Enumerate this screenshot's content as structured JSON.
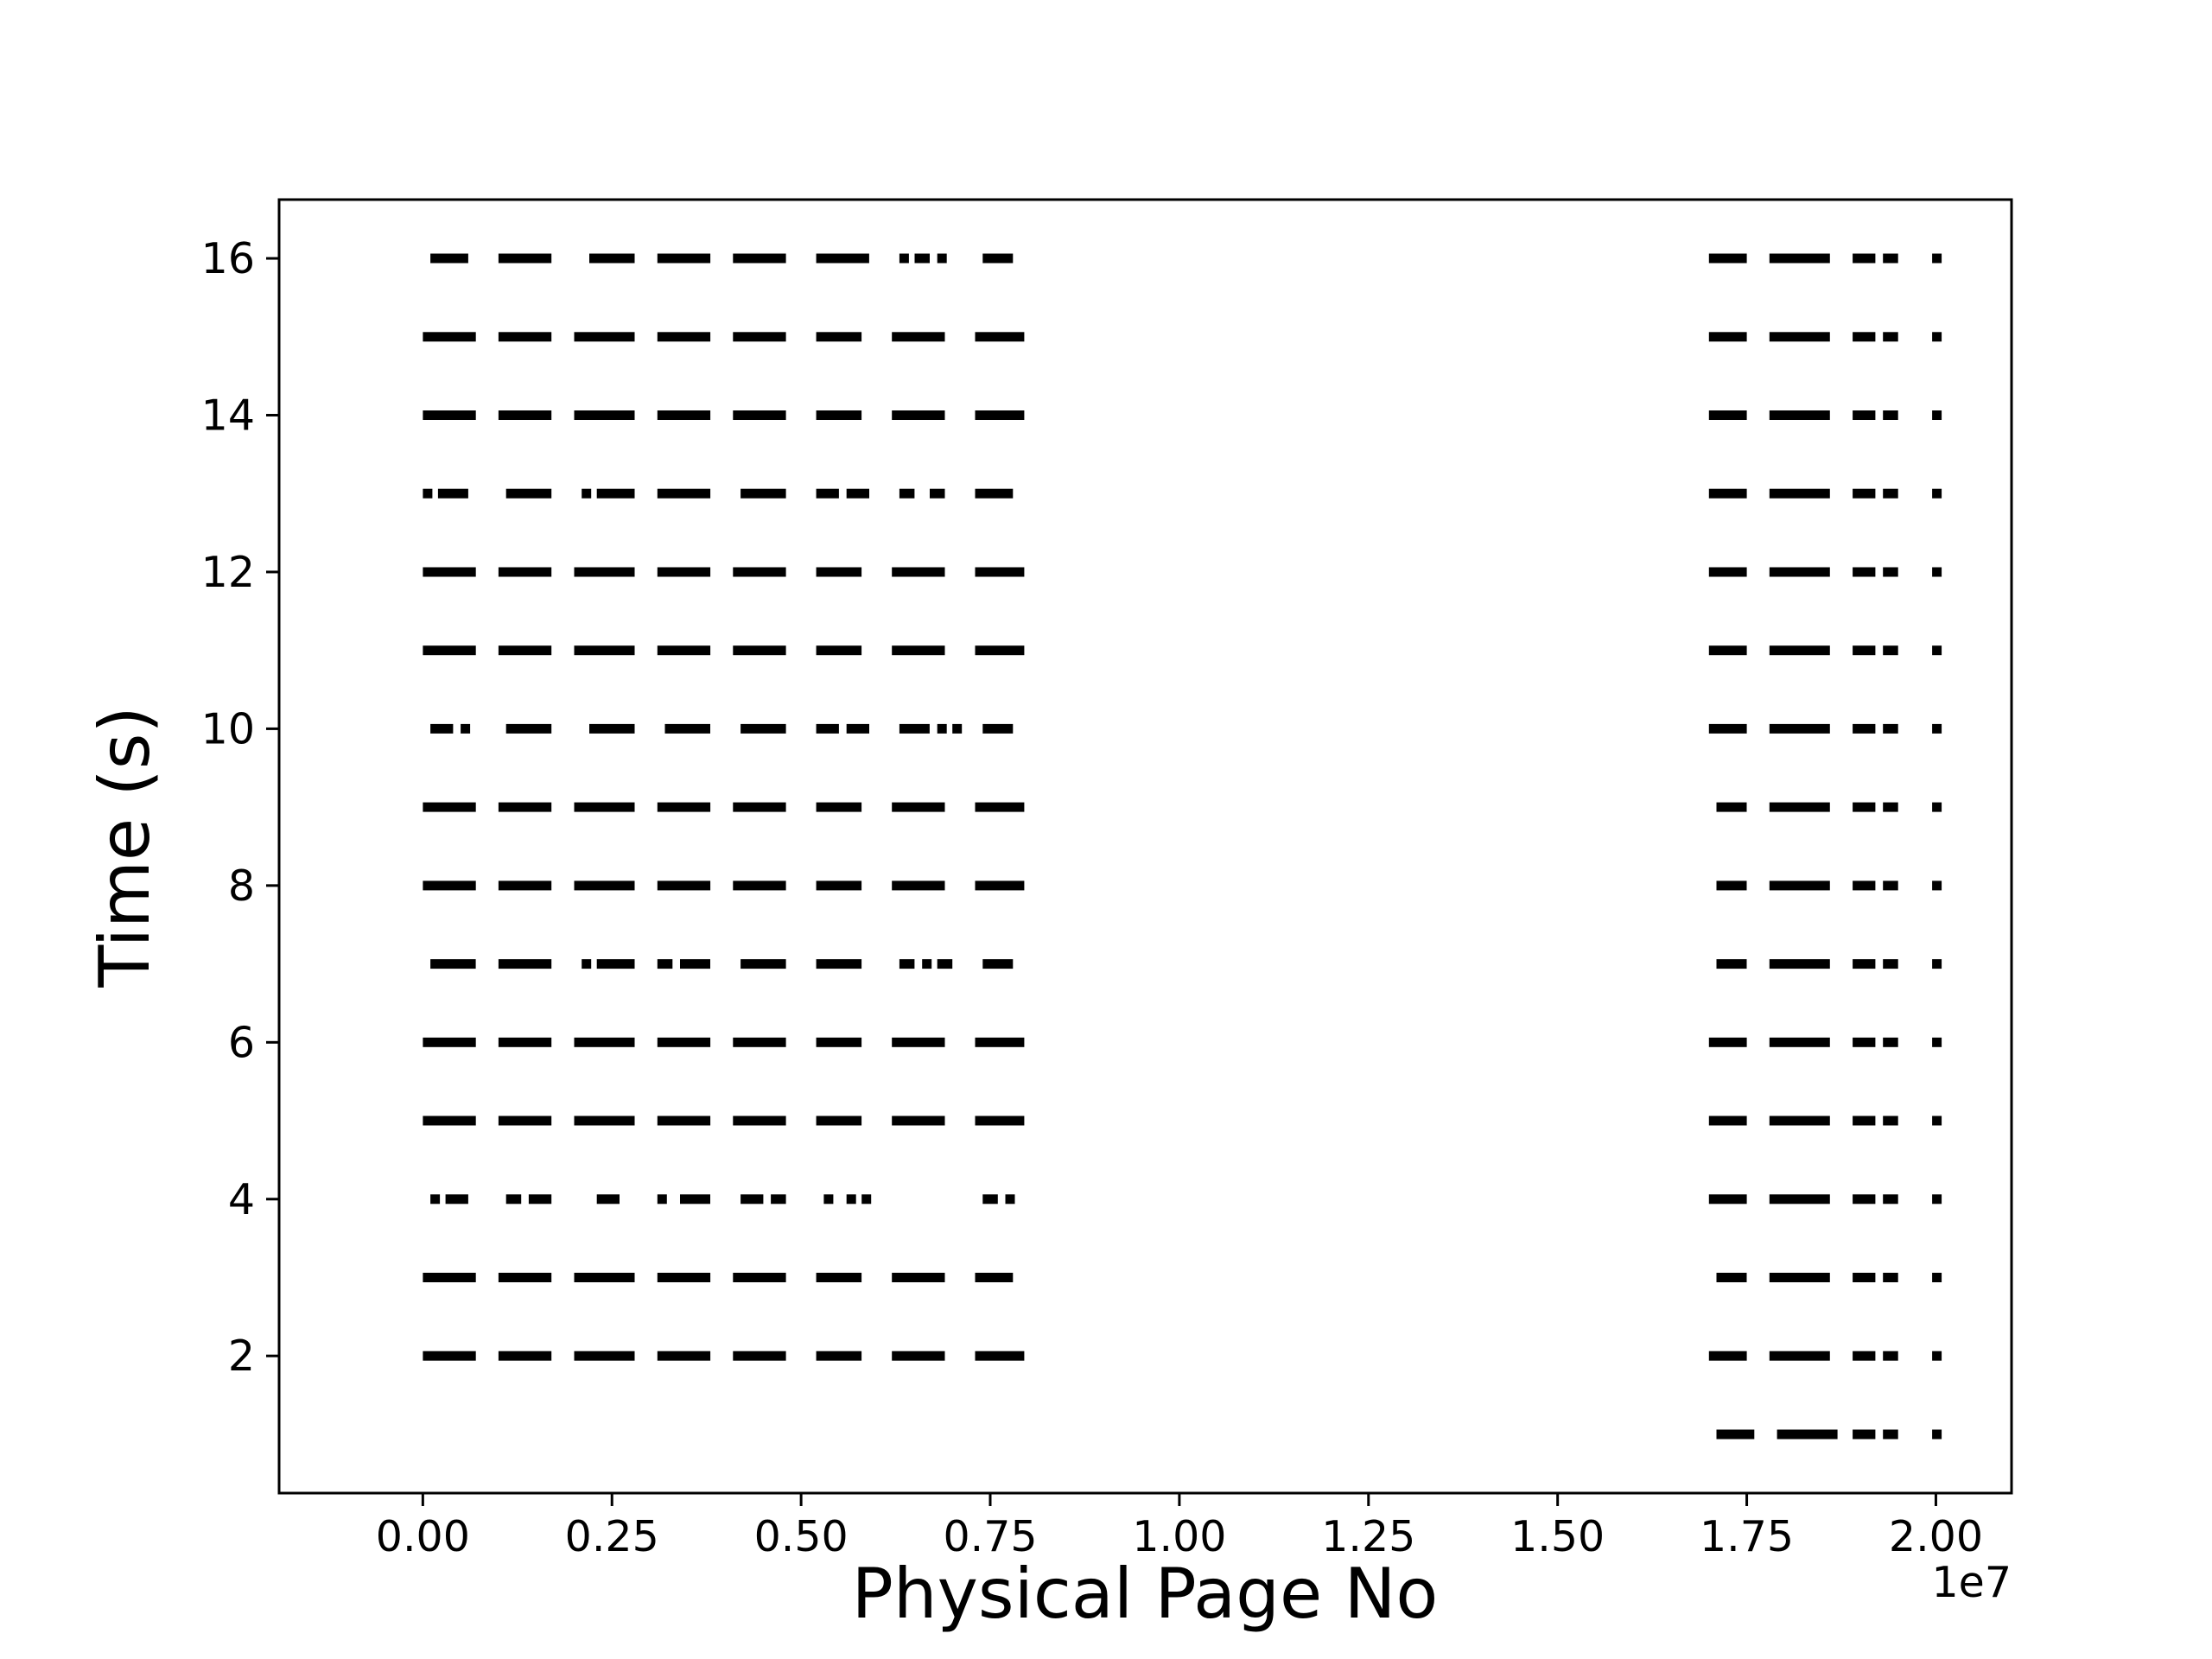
{
  "chart_data": {
    "type": "scatter",
    "title": "",
    "xlabel": "Physical Page No",
    "ylabel": "Time (s)",
    "x_offset_label": "1e7",
    "xlim": [
      -0.19,
      2.1
    ],
    "ylim": [
      0.25,
      16.75
    ],
    "x_units_note": "",
    "x_ticks": [
      0.0,
      0.25,
      0.5,
      0.75,
      1.0,
      1.25,
      1.5,
      1.75,
      2.0
    ],
    "x_tick_labels": [
      "0.00",
      "0.25",
      "0.50",
      "0.75",
      "1.00",
      "1.25",
      "1.50",
      "1.75",
      "2.00"
    ],
    "y_ticks": [
      2,
      4,
      6,
      8,
      10,
      12,
      14,
      16
    ],
    "y_tick_labels": [
      "2",
      "4",
      "6",
      "8",
      "10",
      "12",
      "14",
      "16"
    ],
    "grid": false,
    "marker_color": "#000000",
    "series": [
      {
        "rows": [
          {
            "y": 1,
            "ranges": [
              [
                1.71,
                1.76
              ],
              [
                1.79,
                1.87
              ],
              [
                1.89,
                1.92
              ],
              [
                1.93,
                1.95
              ],
              [
                1.995,
                2.005
              ]
            ]
          },
          {
            "y": 2,
            "ranges": [
              [
                0.0,
                0.07
              ],
              [
                0.1,
                0.17
              ],
              [
                0.2,
                0.28
              ],
              [
                0.31,
                0.38
              ],
              [
                0.41,
                0.48
              ],
              [
                0.52,
                0.58
              ],
              [
                0.62,
                0.69
              ],
              [
                0.73,
                0.795
              ],
              [
                1.7,
                1.75
              ],
              [
                1.78,
                1.86
              ],
              [
                1.89,
                1.92
              ],
              [
                1.93,
                1.95
              ],
              [
                1.995,
                2.005
              ]
            ]
          },
          {
            "y": 3,
            "ranges": [
              [
                0.0,
                0.07
              ],
              [
                0.1,
                0.17
              ],
              [
                0.2,
                0.28
              ],
              [
                0.31,
                0.38
              ],
              [
                0.41,
                0.48
              ],
              [
                0.52,
                0.58
              ],
              [
                0.62,
                0.69
              ],
              [
                0.73,
                0.78
              ],
              [
                1.71,
                1.75
              ],
              [
                1.78,
                1.86
              ],
              [
                1.89,
                1.92
              ],
              [
                1.93,
                1.95
              ],
              [
                1.995,
                2.005
              ]
            ]
          },
          {
            "y": 4,
            "ranges": [
              [
                0.01,
                0.02
              ],
              [
                0.03,
                0.06
              ],
              [
                0.11,
                0.13
              ],
              [
                0.14,
                0.17
              ],
              [
                0.23,
                0.26
              ],
              [
                0.31,
                0.32
              ],
              [
                0.34,
                0.38
              ],
              [
                0.42,
                0.45
              ],
              [
                0.46,
                0.48
              ],
              [
                0.53,
                0.54
              ],
              [
                0.56,
                0.57
              ],
              [
                0.58,
                0.59
              ],
              [
                0.74,
                0.76
              ],
              [
                0.77,
                0.78
              ],
              [
                1.7,
                1.75
              ],
              [
                1.78,
                1.86
              ],
              [
                1.89,
                1.92
              ],
              [
                1.93,
                1.95
              ],
              [
                1.995,
                2.005
              ]
            ]
          },
          {
            "y": 5,
            "ranges": [
              [
                0.0,
                0.07
              ],
              [
                0.1,
                0.17
              ],
              [
                0.2,
                0.28
              ],
              [
                0.31,
                0.38
              ],
              [
                0.41,
                0.48
              ],
              [
                0.52,
                0.58
              ],
              [
                0.62,
                0.69
              ],
              [
                0.73,
                0.795
              ],
              [
                1.7,
                1.75
              ],
              [
                1.78,
                1.86
              ],
              [
                1.89,
                1.92
              ],
              [
                1.93,
                1.95
              ],
              [
                1.995,
                2.005
              ]
            ]
          },
          {
            "y": 6,
            "ranges": [
              [
                0.0,
                0.07
              ],
              [
                0.1,
                0.17
              ],
              [
                0.2,
                0.28
              ],
              [
                0.31,
                0.38
              ],
              [
                0.41,
                0.48
              ],
              [
                0.52,
                0.58
              ],
              [
                0.62,
                0.69
              ],
              [
                0.73,
                0.795
              ],
              [
                1.7,
                1.75
              ],
              [
                1.78,
                1.86
              ],
              [
                1.89,
                1.92
              ],
              [
                1.93,
                1.95
              ],
              [
                1.995,
                2.005
              ]
            ]
          },
          {
            "y": 7,
            "ranges": [
              [
                0.01,
                0.07
              ],
              [
                0.1,
                0.17
              ],
              [
                0.21,
                0.22
              ],
              [
                0.23,
                0.28
              ],
              [
                0.31,
                0.33
              ],
              [
                0.34,
                0.38
              ],
              [
                0.42,
                0.48
              ],
              [
                0.52,
                0.58
              ],
              [
                0.63,
                0.65
              ],
              [
                0.66,
                0.67
              ],
              [
                0.68,
                0.7
              ],
              [
                0.74,
                0.78
              ],
              [
                1.71,
                1.75
              ],
              [
                1.78,
                1.86
              ],
              [
                1.89,
                1.92
              ],
              [
                1.93,
                1.95
              ],
              [
                1.995,
                2.005
              ]
            ]
          },
          {
            "y": 8,
            "ranges": [
              [
                0.0,
                0.07
              ],
              [
                0.1,
                0.17
              ],
              [
                0.2,
                0.28
              ],
              [
                0.31,
                0.38
              ],
              [
                0.41,
                0.48
              ],
              [
                0.52,
                0.58
              ],
              [
                0.62,
                0.69
              ],
              [
                0.73,
                0.795
              ],
              [
                1.71,
                1.75
              ],
              [
                1.78,
                1.86
              ],
              [
                1.89,
                1.92
              ],
              [
                1.93,
                1.95
              ],
              [
                1.995,
                2.005
              ]
            ]
          },
          {
            "y": 9,
            "ranges": [
              [
                0.0,
                0.07
              ],
              [
                0.1,
                0.17
              ],
              [
                0.2,
                0.28
              ],
              [
                0.31,
                0.38
              ],
              [
                0.41,
                0.48
              ],
              [
                0.52,
                0.58
              ],
              [
                0.62,
                0.69
              ],
              [
                0.73,
                0.795
              ],
              [
                1.71,
                1.75
              ],
              [
                1.78,
                1.86
              ],
              [
                1.89,
                1.92
              ],
              [
                1.93,
                1.95
              ],
              [
                1.995,
                2.005
              ]
            ]
          },
          {
            "y": 10,
            "ranges": [
              [
                0.01,
                0.04
              ],
              [
                0.05,
                0.06
              ],
              [
                0.11,
                0.17
              ],
              [
                0.22,
                0.28
              ],
              [
                0.32,
                0.38
              ],
              [
                0.42,
                0.48
              ],
              [
                0.52,
                0.55
              ],
              [
                0.56,
                0.59
              ],
              [
                0.63,
                0.67
              ],
              [
                0.68,
                0.69
              ],
              [
                0.7,
                0.71
              ],
              [
                0.74,
                0.78
              ],
              [
                1.7,
                1.75
              ],
              [
                1.78,
                1.86
              ],
              [
                1.89,
                1.92
              ],
              [
                1.93,
                1.95
              ],
              [
                1.995,
                2.005
              ]
            ]
          },
          {
            "y": 11,
            "ranges": [
              [
                0.0,
                0.07
              ],
              [
                0.1,
                0.17
              ],
              [
                0.2,
                0.28
              ],
              [
                0.31,
                0.38
              ],
              [
                0.41,
                0.48
              ],
              [
                0.52,
                0.58
              ],
              [
                0.62,
                0.69
              ],
              [
                0.73,
                0.795
              ],
              [
                1.7,
                1.75
              ],
              [
                1.78,
                1.86
              ],
              [
                1.89,
                1.92
              ],
              [
                1.93,
                1.95
              ],
              [
                1.995,
                2.005
              ]
            ]
          },
          {
            "y": 12,
            "ranges": [
              [
                0.0,
                0.07
              ],
              [
                0.1,
                0.17
              ],
              [
                0.2,
                0.28
              ],
              [
                0.31,
                0.38
              ],
              [
                0.41,
                0.48
              ],
              [
                0.52,
                0.58
              ],
              [
                0.62,
                0.69
              ],
              [
                0.73,
                0.795
              ],
              [
                1.7,
                1.75
              ],
              [
                1.78,
                1.86
              ],
              [
                1.89,
                1.92
              ],
              [
                1.93,
                1.95
              ],
              [
                1.995,
                2.005
              ]
            ]
          },
          {
            "y": 13,
            "ranges": [
              [
                0.0,
                0.01
              ],
              [
                0.02,
                0.06
              ],
              [
                0.11,
                0.17
              ],
              [
                0.21,
                0.22
              ],
              [
                0.23,
                0.28
              ],
              [
                0.31,
                0.38
              ],
              [
                0.42,
                0.48
              ],
              [
                0.52,
                0.55
              ],
              [
                0.56,
                0.59
              ],
              [
                0.63,
                0.65
              ],
              [
                0.67,
                0.69
              ],
              [
                0.73,
                0.78
              ],
              [
                1.7,
                1.75
              ],
              [
                1.78,
                1.86
              ],
              [
                1.89,
                1.92
              ],
              [
                1.93,
                1.95
              ],
              [
                1.995,
                2.005
              ]
            ]
          },
          {
            "y": 14,
            "ranges": [
              [
                0.0,
                0.07
              ],
              [
                0.1,
                0.17
              ],
              [
                0.2,
                0.28
              ],
              [
                0.31,
                0.38
              ],
              [
                0.41,
                0.48
              ],
              [
                0.52,
                0.58
              ],
              [
                0.62,
                0.69
              ],
              [
                0.73,
                0.795
              ],
              [
                1.7,
                1.75
              ],
              [
                1.78,
                1.86
              ],
              [
                1.89,
                1.92
              ],
              [
                1.93,
                1.95
              ],
              [
                1.995,
                2.005
              ]
            ]
          },
          {
            "y": 15,
            "ranges": [
              [
                0.0,
                0.07
              ],
              [
                0.1,
                0.17
              ],
              [
                0.2,
                0.28
              ],
              [
                0.31,
                0.38
              ],
              [
                0.41,
                0.48
              ],
              [
                0.52,
                0.58
              ],
              [
                0.62,
                0.69
              ],
              [
                0.73,
                0.795
              ],
              [
                1.7,
                1.75
              ],
              [
                1.78,
                1.86
              ],
              [
                1.89,
                1.92
              ],
              [
                1.93,
                1.95
              ],
              [
                1.995,
                2.005
              ]
            ]
          },
          {
            "y": 16,
            "ranges": [
              [
                0.01,
                0.06
              ],
              [
                0.1,
                0.17
              ],
              [
                0.22,
                0.28
              ],
              [
                0.31,
                0.38
              ],
              [
                0.41,
                0.48
              ],
              [
                0.52,
                0.59
              ],
              [
                0.63,
                0.64
              ],
              [
                0.65,
                0.67
              ],
              [
                0.68,
                0.69
              ],
              [
                0.74,
                0.78
              ],
              [
                1.7,
                1.75
              ],
              [
                1.78,
                1.86
              ],
              [
                1.89,
                1.92
              ],
              [
                1.93,
                1.95
              ],
              [
                1.995,
                2.005
              ]
            ]
          }
        ]
      }
    ]
  }
}
